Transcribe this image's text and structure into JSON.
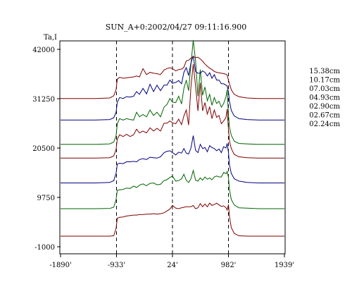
{
  "chart_data": {
    "type": "line",
    "title": "SUN_A+0:2002/04/27 09:11:16.900",
    "ylabel": "Ta,I",
    "xlabel": "",
    "grid": false,
    "legend_placement": "right",
    "xlim": [
      -1890,
      1939
    ],
    "ylim": [
      -1000,
      46000
    ],
    "yticks": [
      42000,
      31250,
      20500,
      9750,
      -1000
    ],
    "ytick_labels": [
      "42000",
      "31250",
      "20500",
      "9750",
      "-1000"
    ],
    "xticks": [
      -1890,
      -933,
      24,
      982,
      1939
    ],
    "xtick_labels": [
      "-1890'",
      "-933'",
      "24'",
      "982'",
      "1939'"
    ],
    "reference_lines_x": [
      -933,
      24,
      982
    ],
    "x": [
      -1890,
      -1300,
      -1050,
      -980,
      -940,
      -920,
      -880,
      -820,
      -760,
      -700,
      -640,
      -590,
      -540,
      -480,
      -420,
      -360,
      -300,
      -240,
      -180,
      -120,
      -70,
      -20,
      24,
      80,
      130,
      180,
      220,
      260,
      300,
      340,
      380,
      420,
      460,
      500,
      540,
      580,
      620,
      660,
      700,
      740,
      780,
      820,
      860,
      900,
      940,
      960,
      982,
      1000,
      1030,
      1080,
      1160,
      1300,
      1500,
      1939
    ],
    "series": [
      {
        "name": "02.24cm",
        "color": "#7f0000",
        "values": [
          1300,
          1300,
          1300,
          1400,
          3000,
          5200,
          5400,
          5500,
          5700,
          5800,
          5900,
          5900,
          6000,
          6000,
          6100,
          6100,
          6200,
          6100,
          6200,
          6400,
          6800,
          7200,
          8000,
          7400,
          7300,
          7500,
          7600,
          7700,
          7700,
          7700,
          8000,
          7300,
          7500,
          8400,
          7700,
          8300,
          7700,
          8500,
          8000,
          8200,
          8500,
          8100,
          7800,
          7900,
          7500,
          7000,
          8200,
          5500,
          3200,
          1900,
          1400,
          1300,
          1300,
          1300
        ]
      },
      {
        "name": "02.67cm",
        "color": "#006400",
        "values": [
          7300,
          7300,
          7350,
          7600,
          9300,
          11300,
          11400,
          11500,
          11800,
          11700,
          12200,
          11900,
          12400,
          12700,
          12300,
          12800,
          12900,
          12500,
          12600,
          13400,
          13600,
          14100,
          14400,
          13300,
          13400,
          13800,
          14800,
          13500,
          13000,
          13800,
          15600,
          13500,
          13300,
          14000,
          13500,
          14200,
          13700,
          14000,
          13600,
          14200,
          14400,
          14200,
          14200,
          15200,
          14900,
          15400,
          14100,
          11400,
          9300,
          8100,
          7500,
          7400,
          7300,
          7300
        ]
      },
      {
        "name": "02.90cm",
        "color": "#00007f",
        "values": [
          12900,
          12900,
          13000,
          13400,
          15000,
          17000,
          17200,
          17100,
          17500,
          17500,
          17600,
          17500,
          18000,
          18200,
          18000,
          18500,
          18400,
          18300,
          18600,
          19500,
          19800,
          19900,
          19500,
          19000,
          19600,
          19400,
          20400,
          19400,
          19200,
          20500,
          23200,
          20000,
          19500,
          21300,
          20400,
          20600,
          19700,
          21000,
          20600,
          20400,
          19900,
          20300,
          19500,
          20800,
          20500,
          21500,
          19600,
          16800,
          15000,
          13800,
          13300,
          13000,
          12900,
          12900
        ]
      },
      {
        "name": "04.93cm",
        "color": "#7f0000",
        "values": [
          18300,
          18300,
          18400,
          18800,
          20200,
          22500,
          23400,
          23000,
          23500,
          23000,
          23400,
          24600,
          23800,
          24200,
          23800,
          24900,
          24200,
          24800,
          24200,
          25900,
          25900,
          26400,
          26000,
          25800,
          26800,
          25600,
          27500,
          28800,
          25500,
          33800,
          38800,
          34000,
          28600,
          34700,
          28600,
          30400,
          27900,
          29500,
          26900,
          28800,
          27200,
          27600,
          25800,
          26400,
          27200,
          29000,
          24500,
          22000,
          20400,
          19100,
          18600,
          18400,
          18300,
          18300
        ]
      },
      {
        "name": "07.03cm",
        "color": "#006400",
        "values": [
          21300,
          21300,
          21400,
          21800,
          23200,
          25800,
          26900,
          26600,
          26900,
          26700,
          26600,
          28300,
          27300,
          27800,
          27300,
          28800,
          27600,
          28300,
          27300,
          29400,
          30000,
          31300,
          30500,
          30400,
          31800,
          30100,
          33500,
          35300,
          33000,
          38700,
          44000,
          39500,
          31800,
          37600,
          32000,
          33800,
          30800,
          32200,
          29800,
          31500,
          30200,
          30700,
          29400,
          30200,
          31700,
          33200,
          27800,
          25000,
          23300,
          22000,
          21500,
          21400,
          21300,
          21300
        ]
      },
      {
        "name": "10.17cm",
        "color": "#00007f",
        "values": [
          26600,
          26600,
          26700,
          27100,
          28300,
          30500,
          31500,
          31300,
          31700,
          31600,
          31800,
          32800,
          32200,
          33500,
          32300,
          34400,
          32800,
          34200,
          33000,
          34200,
          34200,
          35300,
          34600,
          34800,
          35200,
          34500,
          37000,
          38000,
          36300,
          39000,
          40600,
          37200,
          36800,
          36800,
          37300,
          37000,
          36200,
          36900,
          35700,
          36500,
          35300,
          35300,
          34500,
          34500,
          34200,
          34000,
          32800,
          30700,
          28700,
          27500,
          26900,
          26700,
          26600,
          26600
        ]
      },
      {
        "name": "15.38cm",
        "color": "#7f0000",
        "values": [
          31300,
          31300,
          31400,
          31900,
          33200,
          35500,
          35900,
          35700,
          35800,
          35900,
          36000,
          36200,
          36000,
          37800,
          36500,
          37000,
          36800,
          36700,
          36500,
          37500,
          37800,
          38000,
          37800,
          37300,
          37600,
          37700,
          38100,
          39500,
          39600,
          40100,
          40400,
          40200,
          40300,
          39900,
          39400,
          38800,
          38300,
          37900,
          37600,
          37200,
          37000,
          36900,
          36800,
          36700,
          36600,
          36400,
          35300,
          34500,
          33200,
          32200,
          31700,
          31400,
          31300,
          31300
        ]
      }
    ]
  }
}
